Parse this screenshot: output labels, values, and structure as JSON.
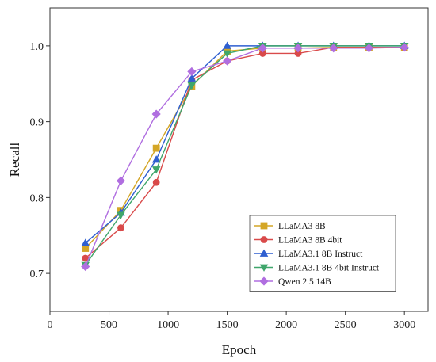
{
  "chart_data": {
    "type": "line",
    "x": [
      300,
      600,
      900,
      1200,
      1500,
      1800,
      2100,
      2400,
      2700,
      3000
    ],
    "xlabel": "Epoch",
    "ylabel": "Recall",
    "xlim": [
      0,
      3200
    ],
    "ylim": [
      0.65,
      1.05
    ],
    "xticks": [
      "0",
      "500",
      "1000",
      "1500",
      "2000",
      "2500",
      "3000"
    ],
    "xtick_values": [
      0,
      500,
      1000,
      1500,
      2000,
      2500,
      3000
    ],
    "yticks": [
      "0.7",
      "0.8",
      "0.9",
      "1.0"
    ],
    "ytick_values": [
      0.7,
      0.8,
      0.9,
      1.0
    ],
    "grid": false,
    "legend_position": "bottom-right",
    "series": [
      {
        "name": "LLaMA3 8B",
        "color": "#d4a626",
        "marker": "square",
        "values": [
          0.733,
          0.783,
          0.865,
          0.947,
          0.993,
          0.997,
          0.997,
          0.998,
          0.998,
          0.998
        ]
      },
      {
        "name": "LLaMA3 8B 4bit",
        "color": "#d94a4a",
        "marker": "circle",
        "values": [
          0.72,
          0.76,
          0.82,
          0.955,
          0.98,
          0.99,
          0.99,
          0.998,
          0.998,
          0.998
        ]
      },
      {
        "name": "LLaMA3.1 8B Instruct",
        "color": "#2f5fd0",
        "marker": "triangle-up",
        "values": [
          0.74,
          0.78,
          0.85,
          0.957,
          1.0,
          1.0,
          1.0,
          1.0,
          1.0,
          1.0
        ]
      },
      {
        "name": "LLaMA3.1 8B 4bit Instruct",
        "color": "#3fa66b",
        "marker": "triangle-down",
        "values": [
          0.711,
          0.777,
          0.837,
          0.948,
          0.99,
          1.0,
          1.0,
          1.0,
          1.0,
          1.0
        ]
      },
      {
        "name": "Qwen 2.5 14B",
        "color": "#b06ee0",
        "marker": "diamond",
        "values": [
          0.709,
          0.822,
          0.91,
          0.966,
          0.98,
          0.997,
          0.997,
          0.997,
          0.997,
          0.998
        ]
      }
    ]
  }
}
